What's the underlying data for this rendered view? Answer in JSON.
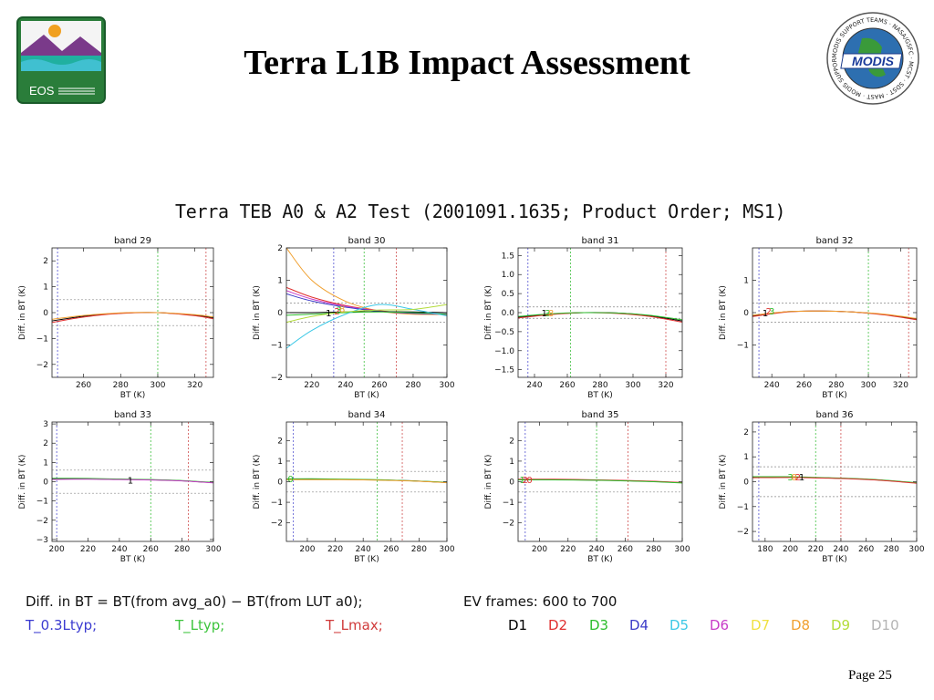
{
  "slide": {
    "title": "Terra L1B Impact Assessment",
    "page": "Page 25",
    "eos_logo_text": "EOS",
    "modis_logo_text": "MODIS",
    "modis_ring_text": "MODIS SUPPORT TEAMS · NASA/GSFC · MCST · SDST · MAST · MODIS SUPPORT TEAMS"
  },
  "figure": {
    "title": "Terra TEB A0 & A2 Test (2001091.1635; Product Order; MS1)"
  },
  "footnote": {
    "formula": "Diff. in BT = BT(from avg_a0) − BT(from LUT a0);",
    "ev_frames": "EV frames: 600 to 700",
    "lines": [
      {
        "label": "T_0.3Ltyp;",
        "color": "#3b3bd0"
      },
      {
        "label": "T_Ltyp;",
        "color": "#3cc43c"
      },
      {
        "label": "T_Lmax;",
        "color": "#d03b3b"
      }
    ],
    "detectors": [
      {
        "label": "D1",
        "color": "#000000"
      },
      {
        "label": "D2",
        "color": "#e03030"
      },
      {
        "label": "D3",
        "color": "#2dbd2d"
      },
      {
        "label": "D4",
        "color": "#3c3cc8"
      },
      {
        "label": "D5",
        "color": "#3cc8e6"
      },
      {
        "label": "D6",
        "color": "#c83cc8"
      },
      {
        "label": "D7",
        "color": "#f0e040"
      },
      {
        "label": "D8",
        "color": "#f0a030"
      },
      {
        "label": "D9",
        "color": "#b4dc3c"
      },
      {
        "label": "D10",
        "color": "#b4b4b4"
      }
    ]
  },
  "chart_data": [
    {
      "type": "line",
      "title": "band 29",
      "xlabel": "BT (K)",
      "ylabel": "Diff. in BT (K)",
      "xlim": [
        243,
        330
      ],
      "ylim": [
        -2.5,
        2.5
      ],
      "xticks": [
        260,
        280,
        300,
        320
      ],
      "yticks": [
        -2,
        -1,
        0,
        1,
        2
      ],
      "vlines": {
        "blue": 246,
        "green": 300,
        "red": 326
      },
      "hlines": [
        0.5,
        -0.5
      ],
      "series": [
        {
          "color": "#000000",
          "x": [
            243,
            260,
            280,
            300,
            320,
            330
          ],
          "y": [
            -0.32,
            -0.14,
            -0.02,
            0.0,
            -0.1,
            -0.2
          ]
        },
        {
          "color": "#e03030",
          "x": [
            243,
            260,
            280,
            300,
            320,
            330
          ],
          "y": [
            -0.38,
            -0.17,
            -0.03,
            0.0,
            -0.12,
            -0.24
          ]
        },
        {
          "color": "#f0a030",
          "x": [
            243,
            260,
            280,
            300,
            320,
            330
          ],
          "y": [
            -0.26,
            -0.11,
            -0.01,
            0.0,
            -0.08,
            -0.17
          ]
        }
      ],
      "markers": []
    },
    {
      "type": "line",
      "title": "band 30",
      "xlabel": "BT (K)",
      "ylabel": "Diff. in BT (K)",
      "xlim": [
        205,
        300
      ],
      "ylim": [
        -2,
        2
      ],
      "xticks": [
        220,
        240,
        260,
        280,
        300
      ],
      "yticks": [
        -2,
        -1,
        0,
        1,
        2
      ],
      "vlines": {
        "blue": 233,
        "green": 251,
        "red": 270
      },
      "hlines": [
        0.3,
        -0.3
      ],
      "series": [
        {
          "color": "#f0a030",
          "x": [
            205,
            220,
            240,
            260,
            280,
            300
          ],
          "y": [
            2.0,
            1.0,
            0.35,
            0.05,
            -0.05,
            -0.05
          ]
        },
        {
          "color": "#e03030",
          "x": [
            205,
            220,
            240,
            260,
            280,
            300
          ],
          "y": [
            0.78,
            0.48,
            0.22,
            0.06,
            -0.02,
            -0.06
          ]
        },
        {
          "color": "#c83cc8",
          "x": [
            205,
            220,
            240,
            260,
            280,
            300
          ],
          "y": [
            0.68,
            0.42,
            0.2,
            0.05,
            -0.02,
            -0.05
          ]
        },
        {
          "color": "#3c3cc8",
          "x": [
            205,
            220,
            240,
            260,
            280,
            300
          ],
          "y": [
            0.58,
            0.36,
            0.17,
            0.04,
            -0.02,
            -0.04
          ]
        },
        {
          "color": "#000000",
          "x": [
            205,
            220,
            240,
            260,
            280,
            300
          ],
          "y": [
            0.0,
            0.0,
            0.02,
            0.03,
            0.02,
            0.0
          ]
        },
        {
          "color": "#2dbd2d",
          "x": [
            205,
            220,
            240,
            260,
            280,
            300
          ],
          "y": [
            -0.08,
            -0.05,
            0.0,
            0.02,
            0.0,
            -0.05
          ]
        },
        {
          "color": "#3cc8e6",
          "x": [
            205,
            220,
            240,
            260,
            280,
            300
          ],
          "y": [
            -1.1,
            -0.55,
            -0.05,
            0.25,
            0.1,
            -0.1
          ]
        },
        {
          "color": "#b4dc3c",
          "x": [
            205,
            220,
            240,
            260,
            280,
            300
          ],
          "y": [
            -0.3,
            -0.12,
            0.02,
            0.08,
            0.1,
            0.25
          ]
        }
      ],
      "markers": [
        {
          "x": 230,
          "y": 0.0,
          "label": "1",
          "color": "#000000"
        },
        {
          "x": 235,
          "y": 0.05,
          "label": "2",
          "color": "#e03030"
        },
        {
          "x": 236,
          "y": 0.1,
          "label": "3",
          "color": "#2dbd2d"
        },
        {
          "x": 238,
          "y": 0.12,
          "label": "8",
          "color": "#f0a030"
        }
      ]
    },
    {
      "type": "line",
      "title": "band 31",
      "xlabel": "BT (K)",
      "ylabel": "Diff. in BT (K)",
      "xlim": [
        230,
        330
      ],
      "ylim": [
        -1.7,
        1.7
      ],
      "xticks": [
        240,
        260,
        280,
        300,
        320
      ],
      "yticks": [
        -1.5,
        -1.0,
        -0.5,
        0.0,
        0.5,
        1.0,
        1.5
      ],
      "vlines": {
        "blue": 236,
        "green": 262,
        "red": 320
      },
      "hlines": [
        0.15,
        -0.15
      ],
      "series": [
        {
          "color": "#000000",
          "x": [
            230,
            250,
            270,
            290,
            310,
            330
          ],
          "y": [
            -0.12,
            -0.04,
            0.0,
            -0.01,
            -0.08,
            -0.22
          ]
        },
        {
          "color": "#e03030",
          "x": [
            230,
            250,
            270,
            290,
            310,
            330
          ],
          "y": [
            -0.14,
            -0.05,
            0.0,
            -0.02,
            -0.1,
            -0.25
          ]
        },
        {
          "color": "#2dbd2d",
          "x": [
            230,
            250,
            270,
            290,
            310,
            330
          ],
          "y": [
            -0.1,
            -0.03,
            0.0,
            -0.01,
            -0.07,
            -0.19
          ]
        }
      ],
      "markers": [
        {
          "x": 246,
          "y": 0.0,
          "label": "1",
          "color": "#000000"
        },
        {
          "x": 248,
          "y": 0.0,
          "label": "3",
          "color": "#2dbd2d"
        },
        {
          "x": 250,
          "y": 0.0,
          "label": "8",
          "color": "#f0a030"
        }
      ]
    },
    {
      "type": "line",
      "title": "band 32",
      "xlabel": "BT (K)",
      "ylabel": "Diff. in BT (K)",
      "xlim": [
        228,
        330
      ],
      "ylim": [
        -2,
        2
      ],
      "xticks": [
        240,
        260,
        280,
        300,
        320
      ],
      "yticks": [
        -1,
        0,
        1
      ],
      "vlines": {
        "blue": 232,
        "green": 300,
        "red": 325
      },
      "hlines": [
        0.3,
        -0.3
      ],
      "series": [
        {
          "color": "#000000",
          "x": [
            228,
            250,
            270,
            290,
            310,
            330
          ],
          "y": [
            -0.1,
            0.03,
            0.05,
            0.02,
            -0.06,
            -0.2
          ]
        },
        {
          "color": "#e03030",
          "x": [
            228,
            250,
            270,
            290,
            310,
            330
          ],
          "y": [
            -0.12,
            0.02,
            0.05,
            0.02,
            -0.07,
            -0.22
          ]
        },
        {
          "color": "#f0a030",
          "x": [
            228,
            250,
            270,
            290,
            310,
            330
          ],
          "y": [
            -0.08,
            0.03,
            0.05,
            0.02,
            -0.05,
            -0.18
          ]
        }
      ],
      "markers": [
        {
          "x": 236,
          "y": 0.0,
          "label": "1",
          "color": "#000000"
        },
        {
          "x": 238,
          "y": 0.05,
          "label": "2",
          "color": "#e03030"
        },
        {
          "x": 240,
          "y": 0.05,
          "label": "3",
          "color": "#2dbd2d"
        }
      ]
    },
    {
      "type": "line",
      "title": "band 33",
      "xlabel": "BT (K)",
      "ylabel": "Diff. in BT (K)",
      "xlim": [
        197,
        300
      ],
      "ylim": [
        -3.1,
        3.1
      ],
      "xticks": [
        200,
        220,
        240,
        260,
        280,
        300
      ],
      "yticks": [
        -3,
        -2,
        -1,
        0,
        1,
        2,
        3
      ],
      "vlines": {
        "blue": 200,
        "green": 260,
        "red": 284
      },
      "hlines": [
        0.6,
        -0.6
      ],
      "series": [
        {
          "color": "#000000",
          "x": [
            197,
            220,
            240,
            260,
            280,
            300
          ],
          "y": [
            0.15,
            0.15,
            0.12,
            0.1,
            0.05,
            -0.05
          ]
        },
        {
          "color": "#2dbd2d",
          "x": [
            197,
            220,
            240,
            260,
            280,
            300
          ],
          "y": [
            0.18,
            0.17,
            0.14,
            0.11,
            0.06,
            -0.04
          ]
        },
        {
          "color": "#c83cc8",
          "x": [
            197,
            220,
            240,
            260,
            280,
            300
          ],
          "y": [
            0.12,
            0.13,
            0.11,
            0.09,
            0.04,
            -0.06
          ]
        }
      ],
      "markers": [
        {
          "x": 247,
          "y": 0.1,
          "label": "1",
          "color": "#000000"
        }
      ]
    },
    {
      "type": "line",
      "title": "band 34",
      "xlabel": "BT (K)",
      "ylabel": "Diff. in BT (K)",
      "xlim": [
        185,
        300
      ],
      "ylim": [
        -2.9,
        2.9
      ],
      "xticks": [
        200,
        220,
        240,
        260,
        280,
        300
      ],
      "yticks": [
        -2,
        -1,
        0,
        1,
        2
      ],
      "vlines": {
        "blue": 190,
        "green": 250,
        "red": 268
      },
      "hlines": [
        0.5,
        -0.5
      ],
      "series": [
        {
          "color": "#000000",
          "x": [
            185,
            210,
            240,
            260,
            280,
            300
          ],
          "y": [
            0.12,
            0.12,
            0.1,
            0.07,
            0.03,
            -0.04
          ]
        },
        {
          "color": "#2dbd2d",
          "x": [
            185,
            210,
            240,
            260,
            280,
            300
          ],
          "y": [
            0.14,
            0.14,
            0.11,
            0.08,
            0.03,
            -0.03
          ]
        },
        {
          "color": "#f0a030",
          "x": [
            185,
            210,
            240,
            260,
            280,
            300
          ],
          "y": [
            0.1,
            0.1,
            0.09,
            0.06,
            0.02,
            -0.05
          ]
        }
      ],
      "markers": [
        {
          "x": 188,
          "y": 0.15,
          "label": "0",
          "color": "#2dbd2d"
        }
      ]
    },
    {
      "type": "line",
      "title": "band 35",
      "xlabel": "BT (K)",
      "ylabel": "Diff. in BT (K)",
      "xlim": [
        185,
        300
      ],
      "ylim": [
        -2.9,
        2.9
      ],
      "xticks": [
        200,
        220,
        240,
        260,
        280,
        300
      ],
      "yticks": [
        -2,
        -1,
        0,
        1,
        2
      ],
      "vlines": {
        "blue": 190,
        "green": 240,
        "red": 262
      },
      "hlines": [
        0.5,
        -0.5
      ],
      "series": [
        {
          "color": "#000000",
          "x": [
            185,
            210,
            240,
            260,
            280,
            300
          ],
          "y": [
            0.1,
            0.1,
            0.08,
            0.05,
            0.01,
            -0.05
          ]
        },
        {
          "color": "#e03030",
          "x": [
            185,
            210,
            240,
            260,
            280,
            300
          ],
          "y": [
            0.12,
            0.12,
            0.09,
            0.06,
            0.02,
            -0.04
          ]
        },
        {
          "color": "#2dbd2d",
          "x": [
            185,
            210,
            240,
            260,
            280,
            300
          ],
          "y": [
            0.09,
            0.09,
            0.07,
            0.04,
            0.0,
            -0.06
          ]
        }
      ],
      "markers": [
        {
          "x": 188,
          "y": 0.1,
          "label": "1",
          "color": "#2dbd2d"
        },
        {
          "x": 190,
          "y": 0.1,
          "label": "2",
          "color": "#e03030"
        },
        {
          "x": 193,
          "y": 0.1,
          "label": "0",
          "color": "#e03030"
        }
      ]
    },
    {
      "type": "line",
      "title": "band 36",
      "xlabel": "BT (K)",
      "ylabel": "Diff. in BT (K)",
      "xlim": [
        170,
        300
      ],
      "ylim": [
        -2.4,
        2.4
      ],
      "xticks": [
        180,
        200,
        220,
        240,
        260,
        280,
        300
      ],
      "yticks": [
        -2,
        -1,
        0,
        1,
        2
      ],
      "vlines": {
        "blue": 175,
        "green": 220,
        "red": 240
      },
      "hlines": [
        0.6,
        -0.6
      ],
      "series": [
        {
          "color": "#000000",
          "x": [
            170,
            200,
            230,
            250,
            270,
            300
          ],
          "y": [
            0.18,
            0.18,
            0.15,
            0.12,
            0.07,
            -0.05
          ]
        },
        {
          "color": "#2dbd2d",
          "x": [
            170,
            200,
            230,
            250,
            270,
            300
          ],
          "y": [
            0.2,
            0.2,
            0.16,
            0.13,
            0.08,
            -0.04
          ]
        },
        {
          "color": "#e03030",
          "x": [
            170,
            200,
            230,
            250,
            270,
            300
          ],
          "y": [
            0.16,
            0.17,
            0.14,
            0.11,
            0.06,
            -0.06
          ]
        }
      ],
      "markers": [
        {
          "x": 200,
          "y": 0.2,
          "label": "3",
          "color": "#2dbd2d"
        },
        {
          "x": 203,
          "y": 0.2,
          "label": "8",
          "color": "#f0a030"
        },
        {
          "x": 206,
          "y": 0.2,
          "label": "2",
          "color": "#e03030"
        },
        {
          "x": 209,
          "y": 0.2,
          "label": "1",
          "color": "#000000"
        }
      ]
    }
  ]
}
